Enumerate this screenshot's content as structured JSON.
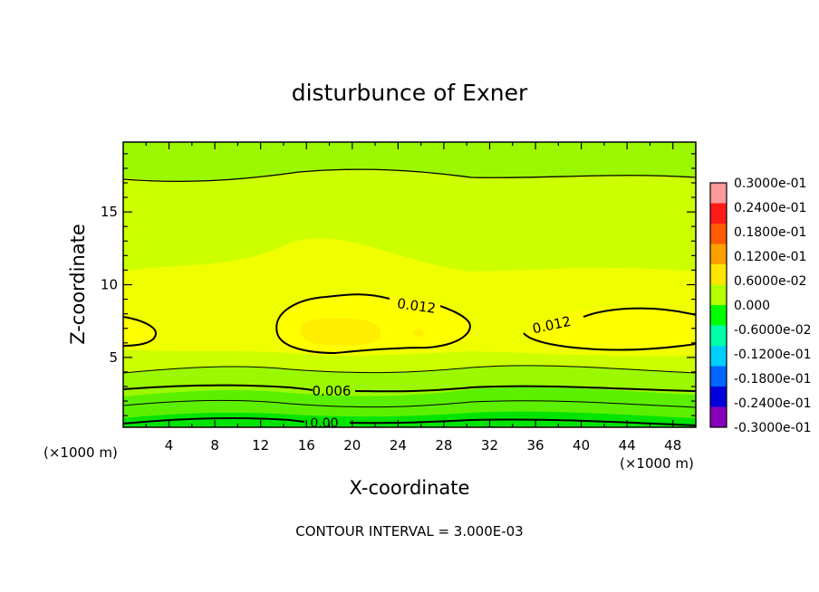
{
  "chart_data": {
    "type": "contour",
    "title": "disturbunce of Exner",
    "xlabel": "X-coordinate",
    "ylabel": "Z-coordinate",
    "x_unit_left": "(×1000 m)",
    "x_unit_right": "(×1000 m)",
    "xlim": [
      0,
      50
    ],
    "ylim": [
      0.2,
      19.8
    ],
    "x_ticks": [
      4,
      8,
      12,
      16,
      20,
      24,
      28,
      32,
      36,
      40,
      44,
      48
    ],
    "y_ticks": [
      5,
      10,
      15
    ],
    "contour_interval_label": "CONTOUR INTERVAL = 3.000E-03",
    "contour_labels": [
      {
        "text": "0.012",
        "x": 25.8,
        "y": 8.6
      },
      {
        "text": "0.012",
        "x": 37.8,
        "y": 7.2
      },
      {
        "text": "0.006",
        "x": 18.2,
        "y": 2.6
      },
      {
        "text": "0.00",
        "x": 17.6,
        "y": 0.4
      }
    ],
    "colorbar": {
      "min": -0.03,
      "max": 0.03,
      "labels": [
        "0.3000e-01",
        "0.2400e-01",
        "0.1800e-01",
        "0.1200e-01",
        "0.6000e-02",
        "0.000",
        "-0.6000e-02",
        "-0.1200e-01",
        "-0.1800e-01",
        "-0.2400e-01",
        "-0.3000e-01"
      ],
      "colors": [
        "#ff9a9a",
        "#ff1a1a",
        "#ff5a00",
        "#ffa000",
        "#ffe600",
        "#b4ff00",
        "#00ff00",
        "#00ffaa",
        "#00d0ff",
        "#0066ff",
        "#0000dd",
        "#8800bb"
      ]
    },
    "field_colors": {
      "band_0.000": "#00e400",
      "band_0.003": "#5cf000",
      "band_0.006": "#9cf800",
      "band_0.009": "#ccff00",
      "band_0.012": "#ffff00",
      "band_0.015": "#ffe600"
    }
  }
}
